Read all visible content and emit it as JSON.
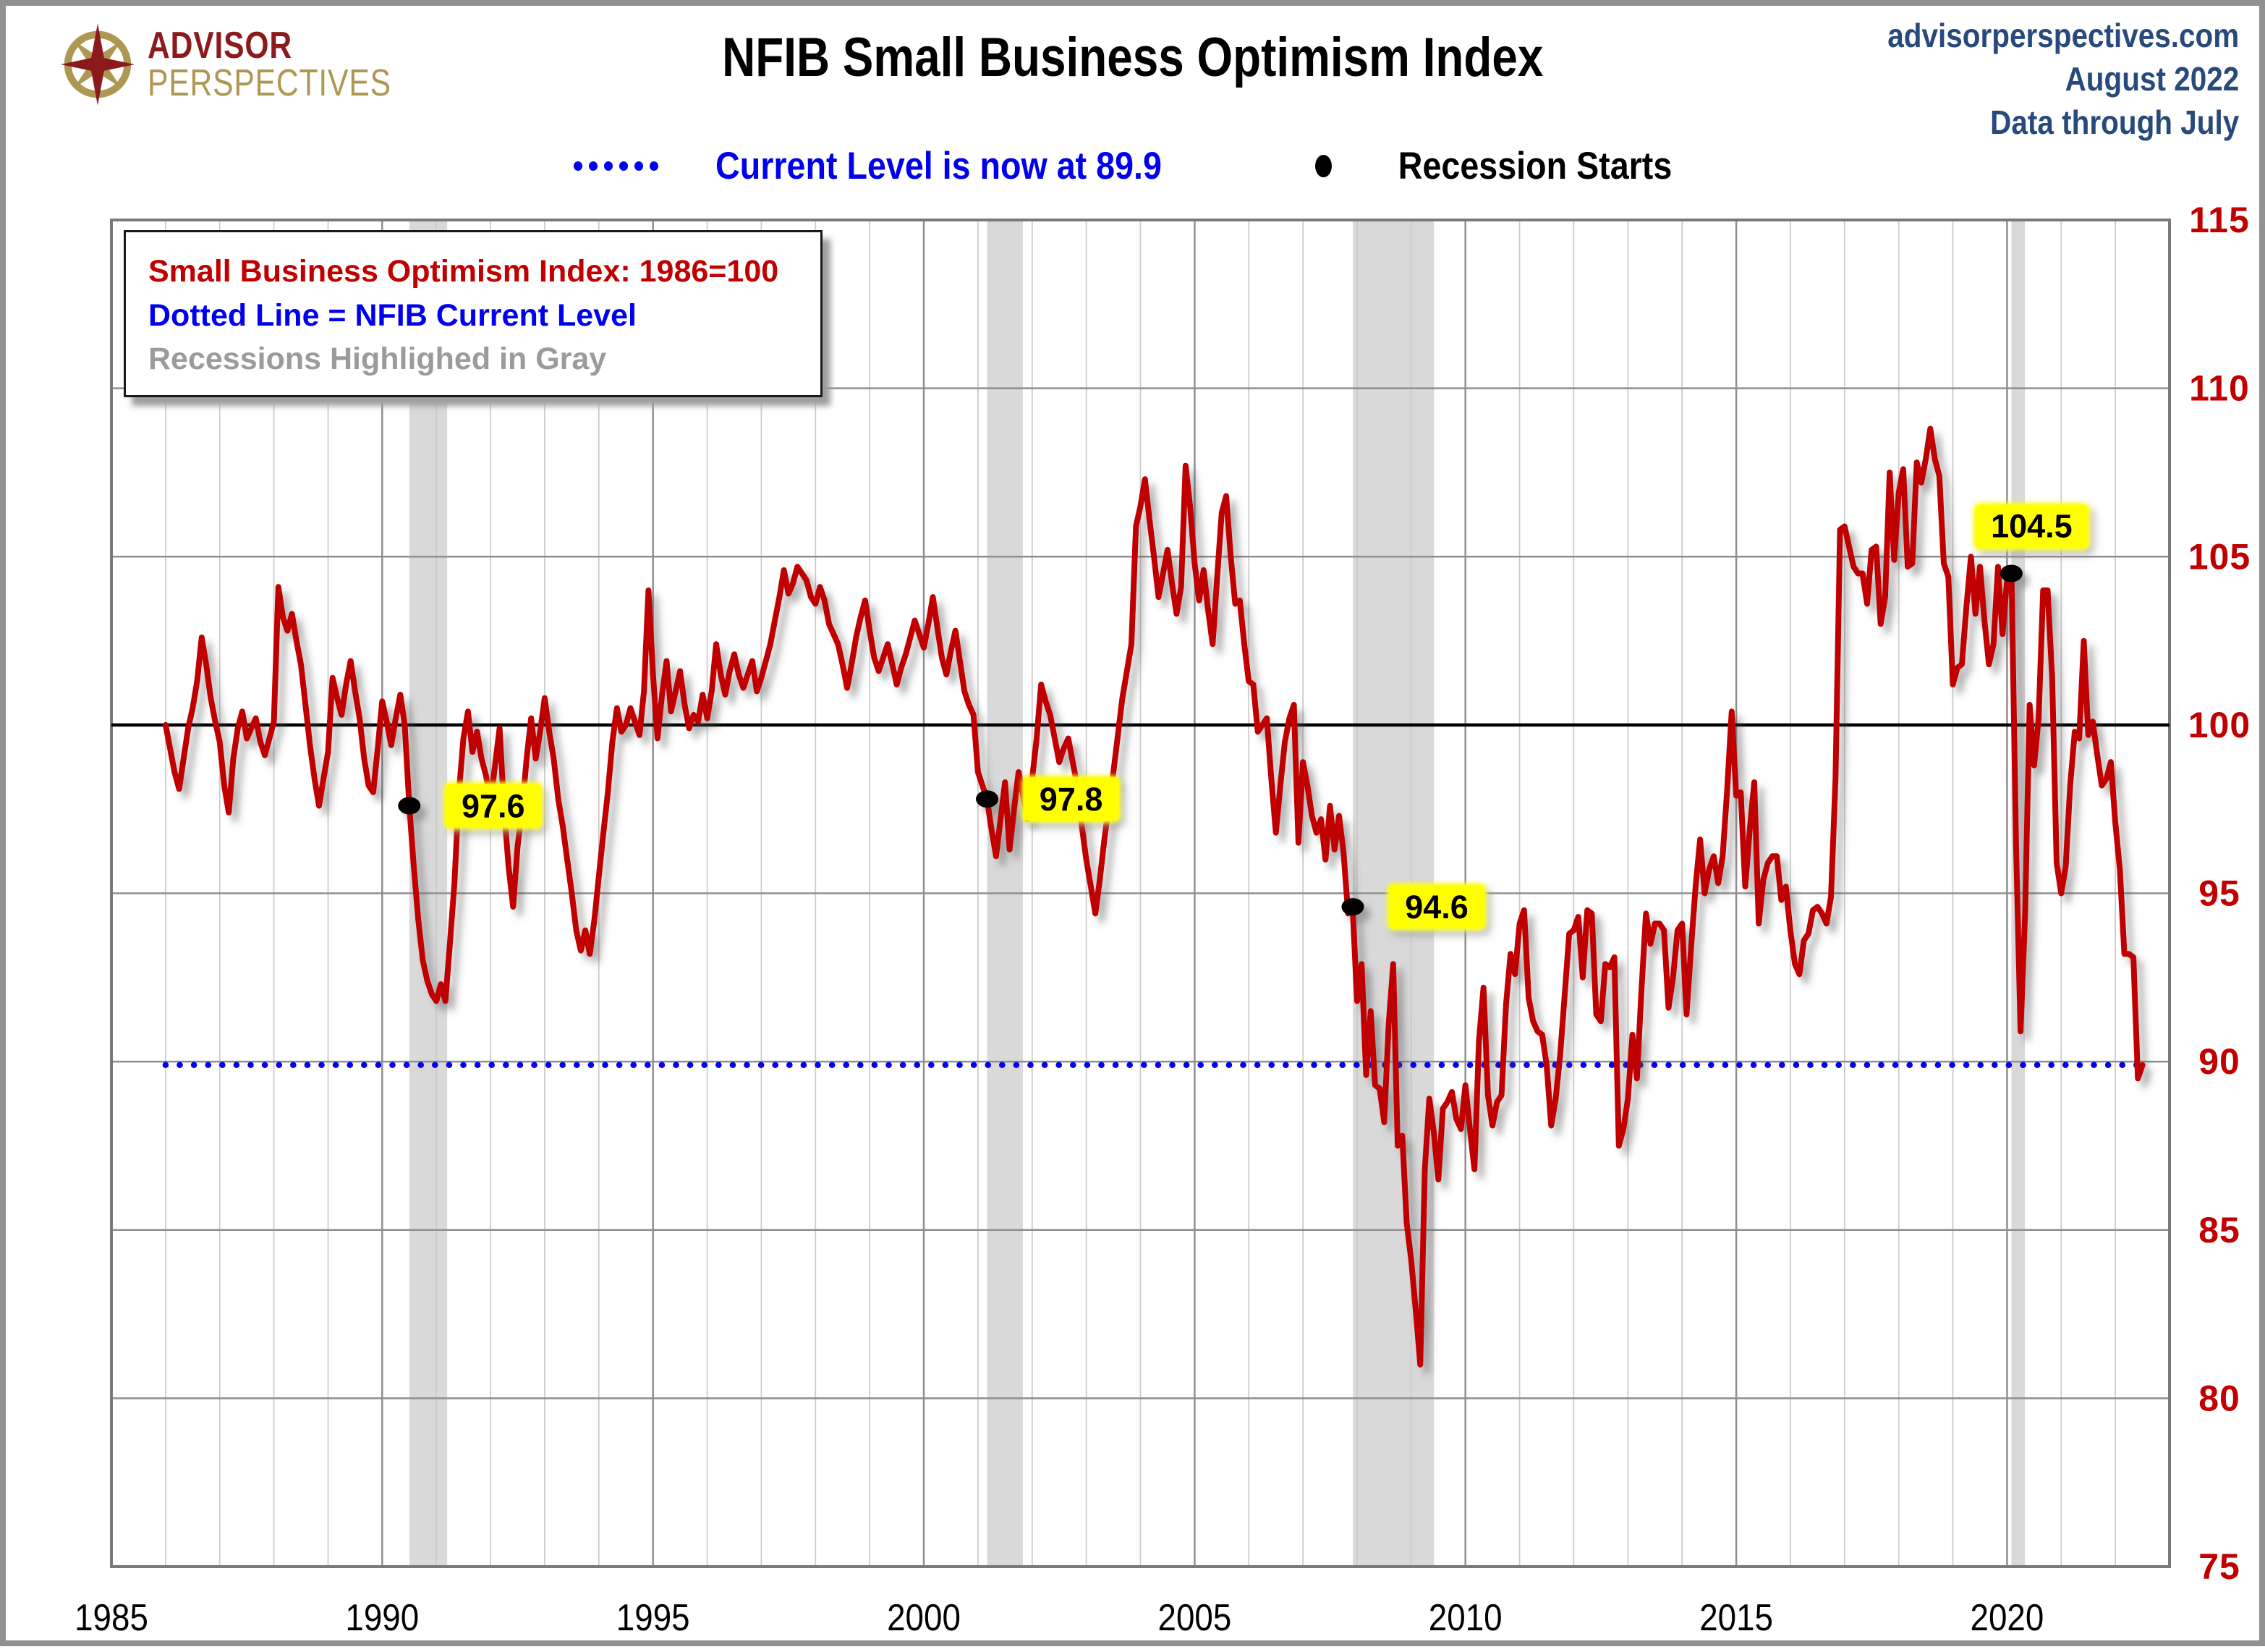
{
  "page": {
    "logo": {
      "line1": "ADVISOR",
      "line2": "PERSPECTIVES"
    },
    "title": "NFIB Small Business Optimism Index",
    "header_right": {
      "line1": "advisorperspectives.com",
      "line2": "August 2022",
      "line3": "Data through July"
    },
    "top_legend": {
      "current_level_label": "Current Level is now at 89.9",
      "recession_label": "Recession Starts"
    },
    "inplot_legend": {
      "line1": "Small Business Optimism Index: 1986=100",
      "line2": "Dotted Line = NFIB Current Level",
      "line3": "Recessions Highlighed in Gray"
    }
  },
  "chart_data": {
    "type": "line",
    "title": "NFIB Small Business Optimism Index",
    "xlabel": "",
    "ylabel": "",
    "x_axis": {
      "min": 1985,
      "max": 2023,
      "tick_years": [
        1985,
        1990,
        1995,
        2000,
        2005,
        2010,
        2015,
        2020
      ]
    },
    "y_axis": {
      "min": 75,
      "max": 115,
      "ticks": [
        75,
        80,
        85,
        90,
        95,
        100,
        105,
        110,
        115
      ]
    },
    "grid": true,
    "baseline_value": 100,
    "current_level": 89.9,
    "colors": {
      "line": "#C00000",
      "current_level_line": "#0000EE",
      "baseline_line": "#000000",
      "recession_band": "#D9D9D9",
      "axis_label_y": "#C00000",
      "axis_label_x": "#000000",
      "grid_minor": "#CACACA",
      "grid_major": "#8F8F8F",
      "label_highlight": "#FFFF00"
    },
    "recession_bands": [
      [
        1990.5,
        1991.2
      ],
      [
        2001.17,
        2001.83
      ],
      [
        2007.92,
        2009.42
      ],
      [
        2020.08,
        2020.33
      ]
    ],
    "recession_starts": [
      {
        "year": 1990.5,
        "value": 97.6,
        "label": "97.6",
        "label_pos": "right"
      },
      {
        "year": 2001.17,
        "value": 97.8,
        "label": "97.8",
        "label_pos": "right"
      },
      {
        "year": 2007.92,
        "value": 94.6,
        "label": "94.6",
        "label_pos": "right"
      },
      {
        "year": 2020.08,
        "value": 104.5,
        "label": "104.5",
        "label_pos": "above"
      }
    ],
    "series": [
      {
        "name": "Small Business Optimism Index",
        "start_year": 1986,
        "points_per_year": 12,
        "values": [
          100.0,
          99.3,
          98.6,
          98.1,
          99.0,
          99.9,
          100.5,
          101.3,
          102.6,
          101.8,
          100.8,
          100.1,
          99.5,
          98.2,
          97.4,
          99.0,
          99.9,
          100.4,
          99.6,
          99.9,
          100.2,
          99.5,
          99.1,
          99.6,
          100.1,
          104.1,
          103.2,
          102.8,
          103.3,
          102.5,
          101.8,
          100.6,
          99.4,
          98.4,
          97.6,
          98.4,
          99.2,
          101.4,
          100.8,
          100.3,
          101.2,
          101.9,
          101.0,
          100.2,
          99.0,
          98.2,
          98.0,
          99.3,
          100.7,
          100.1,
          99.4,
          100.2,
          100.9,
          100.0,
          97.6,
          95.8,
          94.2,
          93.0,
          92.4,
          92.0,
          91.8,
          92.3,
          91.8,
          93.5,
          95.3,
          98.0,
          99.6,
          100.4,
          99.2,
          99.8,
          99.0,
          98.5,
          97.7,
          98.8,
          99.9,
          97.5,
          95.8,
          94.6,
          96.4,
          97.5,
          99.0,
          100.2,
          99.0,
          99.8,
          100.8,
          99.8,
          99.0,
          97.8,
          97.0,
          96.0,
          95.0,
          93.9,
          93.3,
          93.9,
          93.2,
          94.2,
          95.5,
          96.8,
          98.0,
          99.5,
          100.5,
          99.8,
          100.0,
          100.5,
          100.1,
          99.7,
          101.0,
          104.0,
          101.5,
          99.6,
          100.9,
          101.9,
          100.4,
          101.0,
          101.6,
          100.6,
          99.9,
          100.3,
          100.1,
          100.9,
          100.2,
          101.0,
          102.4,
          101.5,
          100.9,
          101.6,
          102.1,
          101.5,
          101.1,
          101.5,
          101.9,
          101.0,
          101.4,
          101.9,
          102.4,
          103.1,
          103.8,
          104.6,
          103.9,
          104.2,
          104.7,
          104.5,
          104.3,
          103.8,
          103.6,
          104.1,
          103.7,
          103.0,
          102.7,
          102.4,
          101.8,
          101.1,
          101.8,
          102.6,
          103.2,
          103.7,
          102.8,
          102.0,
          101.6,
          102.0,
          102.4,
          101.8,
          101.2,
          101.7,
          102.1,
          102.6,
          103.1,
          102.7,
          102.3,
          103.0,
          103.8,
          102.9,
          102.0,
          101.5,
          102.2,
          102.8,
          101.9,
          101.0,
          100.6,
          100.3,
          98.6,
          98.2,
          97.8,
          96.9,
          96.1,
          97.2,
          98.3,
          96.3,
          97.5,
          98.6,
          97.9,
          97.2,
          98.4,
          99.6,
          101.2,
          100.7,
          100.3,
          99.6,
          98.9,
          99.3,
          99.6,
          98.9,
          98.2,
          97.0,
          96.0,
          95.2,
          94.4,
          95.4,
          96.6,
          97.6,
          98.6,
          99.7,
          100.8,
          101.6,
          102.4,
          105.9,
          106.5,
          107.3,
          106.1,
          105.0,
          103.8,
          104.5,
          105.2,
          104.2,
          103.3,
          104.1,
          107.7,
          106.5,
          104.8,
          103.7,
          104.6,
          103.4,
          102.4,
          104.4,
          106.3,
          106.8,
          105.0,
          103.6,
          103.7,
          102.4,
          101.3,
          101.2,
          99.8,
          100.0,
          100.2,
          98.4,
          96.8,
          98.2,
          99.5,
          100.2,
          100.6,
          96.5,
          98.9,
          98.2,
          97.3,
          96.8,
          97.2,
          96.0,
          97.6,
          96.3,
          97.3,
          96.2,
          94.4,
          94.6,
          91.8,
          92.9,
          89.6,
          91.5,
          89.3,
          89.2,
          88.2,
          91.1,
          92.9,
          87.5,
          87.8,
          85.2,
          84.1,
          82.6,
          81.0,
          86.8,
          88.9,
          87.9,
          86.5,
          88.6,
          88.8,
          89.1,
          88.3,
          88.0,
          89.3,
          88.0,
          86.8,
          90.6,
          92.2,
          89.0,
          88.1,
          88.8,
          89.0,
          91.7,
          93.2,
          92.6,
          94.1,
          94.5,
          91.9,
          91.2,
          90.9,
          90.8,
          89.9,
          88.1,
          88.9,
          90.2,
          92.0,
          93.8,
          93.9,
          94.3,
          92.5,
          94.5,
          94.4,
          91.4,
          91.2,
          92.9,
          92.8,
          93.1,
          87.5,
          88.0,
          88.9,
          90.8,
          89.5,
          92.1,
          94.4,
          93.5,
          94.1,
          94.1,
          93.9,
          91.6,
          92.5,
          93.9,
          94.1,
          91.4,
          93.4,
          95.2,
          96.6,
          95.0,
          95.7,
          96.1,
          95.3,
          96.1,
          98.1,
          100.4,
          97.9,
          98.0,
          95.2,
          96.9,
          98.3,
          94.1,
          95.4,
          95.9,
          96.1,
          96.1,
          94.8,
          95.2,
          93.9,
          92.9,
          92.6,
          93.6,
          93.8,
          94.5,
          94.6,
          94.4,
          94.1,
          94.9,
          98.4,
          105.8,
          105.9,
          105.3,
          104.7,
          104.5,
          104.5,
          103.6,
          105.2,
          105.3,
          103.0,
          103.8,
          107.5,
          104.9,
          106.9,
          107.6,
          104.7,
          104.8,
          107.8,
          107.2,
          107.9,
          108.8,
          107.9,
          107.4,
          104.8,
          104.4,
          101.2,
          101.7,
          101.8,
          103.5,
          105.0,
          103.3,
          104.7,
          103.1,
          101.8,
          102.4,
          104.7,
          102.7,
          104.3,
          104.5,
          96.4,
          90.9,
          94.4,
          100.6,
          98.8,
          100.2,
          104.0,
          104.0,
          101.4,
          95.9,
          95.0,
          95.8,
          98.2,
          99.8,
          99.6,
          102.5,
          99.7,
          100.1,
          99.1,
          98.2,
          98.4,
          98.9,
          97.1,
          95.7,
          93.2,
          93.2,
          93.1,
          89.5,
          89.9
        ]
      }
    ]
  }
}
